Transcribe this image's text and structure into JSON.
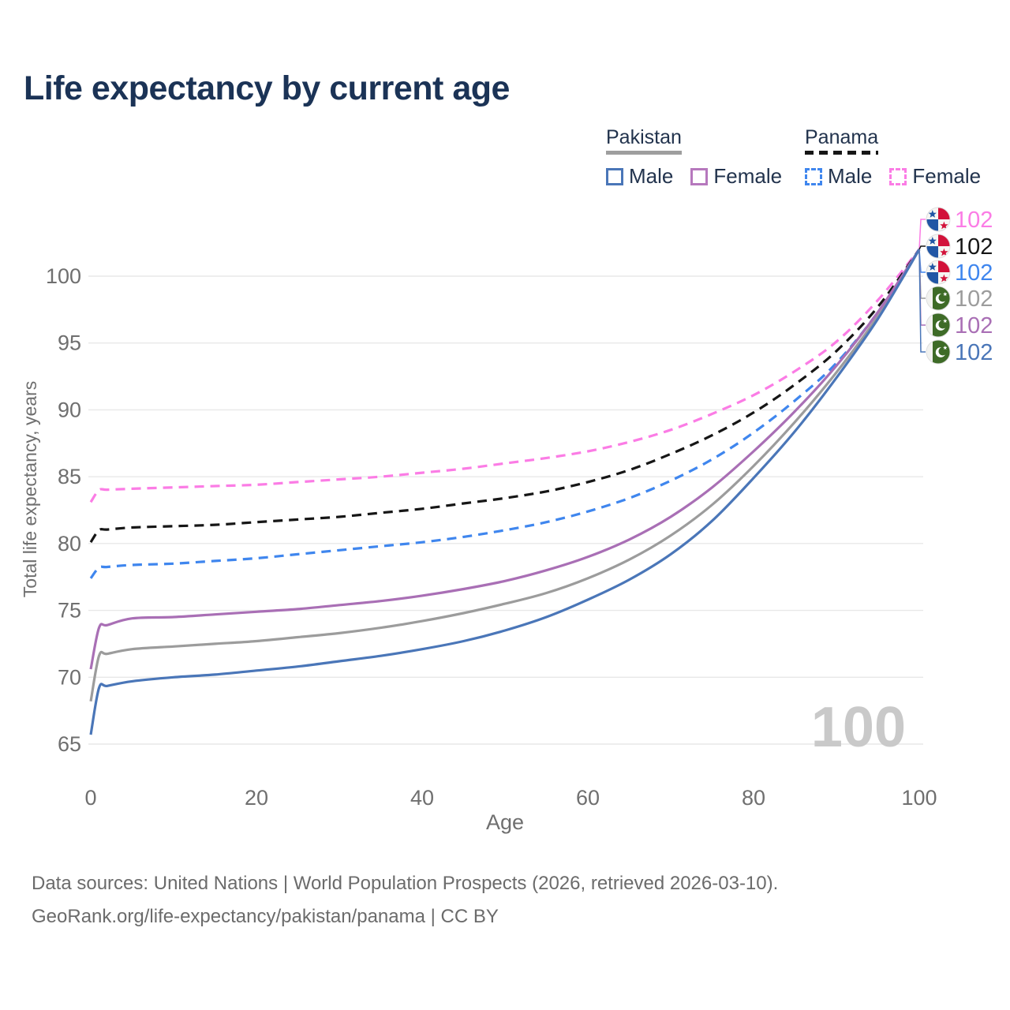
{
  "header": {
    "title": "Life expectancy by current age",
    "title_color": "#1b3356"
  },
  "legend": {
    "text_color": "#22334d",
    "groups": [
      {
        "country": "Pakistan",
        "line_style": "solid",
        "underline_color": "#9e9e9e",
        "items": [
          {
            "label": "Male",
            "color": "#4a76b8",
            "dashed": false
          },
          {
            "label": "Female",
            "color": "#b678bd",
            "dashed": false
          }
        ]
      },
      {
        "country": "Panama",
        "line_style": "dashed",
        "underline_color": "#161616",
        "items": [
          {
            "label": "Male",
            "color": "#3f86ee",
            "dashed": true
          },
          {
            "label": "Female",
            "color": "#fb7ce5",
            "dashed": true
          }
        ]
      }
    ]
  },
  "watermark": {
    "text": "100",
    "color": "#c9c9c9"
  },
  "footer": {
    "line1": "Data sources: United Nations | World Population Prospects (2026, retrieved 2026-03-10).",
    "line2": "GeoRank.org/life-expectancy/pakistan/panama | CC BY",
    "color": "#6b6b6b"
  },
  "chart_data": {
    "type": "line",
    "title": "Life expectancy by current age",
    "xlabel": "Age",
    "ylabel": "Total life expectancy, years",
    "xlim": [
      0,
      100
    ],
    "ylim": [
      65,
      102
    ],
    "xticks": [
      0,
      20,
      40,
      60,
      80,
      100
    ],
    "yticks": [
      65,
      70,
      75,
      80,
      85,
      90,
      95,
      100
    ],
    "grid": "horizontal-only",
    "legend_position": "top-right",
    "axis_text_color": "#6f6f6f",
    "grid_color": "#e8e8e8",
    "current_age_watermark": "100",
    "x": [
      0,
      1,
      2,
      5,
      10,
      15,
      20,
      25,
      30,
      35,
      40,
      45,
      50,
      55,
      60,
      65,
      70,
      75,
      80,
      85,
      90,
      95,
      100
    ],
    "series": [
      {
        "name": "Panama Female",
        "country": "Panama",
        "sex": "Female",
        "flag": "panama",
        "color": "#fb7ce5",
        "dashed": true,
        "end_label": "102",
        "values": [
          83.1,
          84.0,
          84.03,
          84.1,
          84.2,
          84.3,
          84.4,
          84.6,
          84.8,
          85.0,
          85.3,
          85.6,
          86.0,
          86.4,
          86.9,
          87.6,
          88.5,
          89.7,
          91.1,
          92.9,
          95.1,
          98.2,
          102
        ]
      },
      {
        "name": "Panama (both sexes)",
        "country": "Panama",
        "sex": "Both",
        "flag": "panama",
        "color": "#161616",
        "dashed": true,
        "end_label": "102",
        "values": [
          80.1,
          81.0,
          81.05,
          81.2,
          81.3,
          81.4,
          81.6,
          81.8,
          82.0,
          82.3,
          82.6,
          83.0,
          83.4,
          83.9,
          84.6,
          85.5,
          86.7,
          88.1,
          89.8,
          91.9,
          94.4,
          97.7,
          102
        ]
      },
      {
        "name": "Panama Male",
        "country": "Panama",
        "sex": "Male",
        "flag": "panama",
        "color": "#3f86ee",
        "dashed": true,
        "end_label": "102",
        "values": [
          77.4,
          78.2,
          78.25,
          78.4,
          78.5,
          78.7,
          78.9,
          79.2,
          79.5,
          79.8,
          80.1,
          80.5,
          81.0,
          81.6,
          82.4,
          83.4,
          84.7,
          86.3,
          88.3,
          90.7,
          93.5,
          97.3,
          102
        ]
      },
      {
        "name": "Pakistan (both sexes)",
        "country": "Pakistan",
        "sex": "Both",
        "flag": "pakistan",
        "color": "#9c9c9c",
        "dashed": false,
        "end_label": "102",
        "values": [
          68.2,
          71.6,
          71.75,
          72.1,
          72.3,
          72.5,
          72.7,
          73.0,
          73.3,
          73.7,
          74.2,
          74.8,
          75.5,
          76.3,
          77.4,
          78.8,
          80.6,
          82.9,
          85.8,
          89.1,
          92.8,
          97.0,
          102
        ]
      },
      {
        "name": "Pakistan Female",
        "country": "Pakistan",
        "sex": "Female",
        "flag": "pakistan",
        "color": "#a96fb5",
        "dashed": false,
        "end_label": "102",
        "values": [
          70.6,
          73.7,
          73.9,
          74.4,
          74.5,
          74.7,
          74.9,
          75.1,
          75.4,
          75.7,
          76.1,
          76.6,
          77.2,
          78.0,
          79.0,
          80.3,
          82.0,
          84.2,
          86.9,
          89.9,
          93.3,
          97.3,
          102
        ]
      },
      {
        "name": "Pakistan Male",
        "country": "Pakistan",
        "sex": "Male",
        "flag": "pakistan",
        "color": "#4a76b8",
        "dashed": false,
        "end_label": "102",
        "values": [
          65.7,
          69.2,
          69.35,
          69.7,
          70.0,
          70.2,
          70.5,
          70.8,
          71.2,
          71.6,
          72.1,
          72.7,
          73.5,
          74.5,
          75.8,
          77.3,
          79.2,
          81.7,
          84.9,
          88.4,
          92.4,
          96.8,
          102
        ]
      }
    ]
  }
}
